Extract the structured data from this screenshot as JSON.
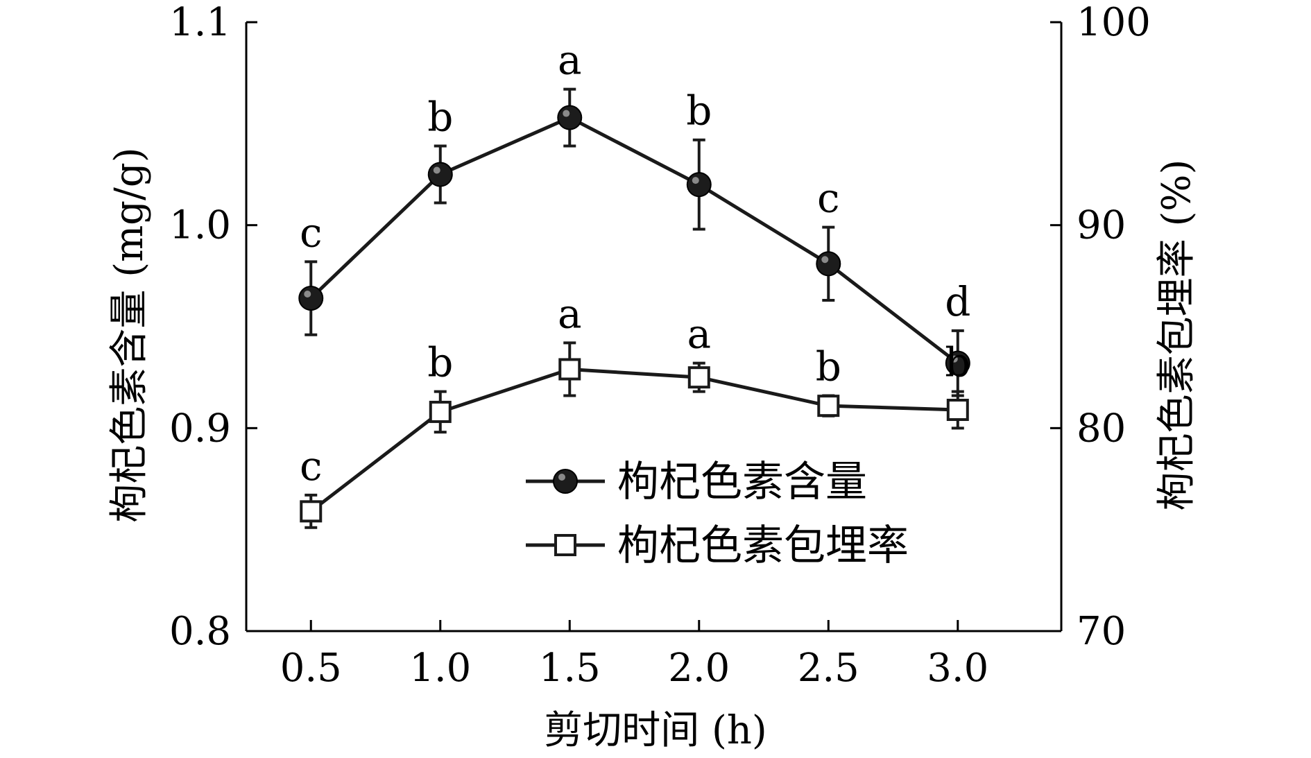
{
  "chart_data": {
    "type": "line",
    "xlabel": "剪切时间 (h)",
    "ylabel_left": "枸杞色素含量 (mg/g)",
    "ylabel_right": "枸杞色素包埋率 (%)",
    "x": [
      0.5,
      1.0,
      1.5,
      2.0,
      2.5,
      3.0
    ],
    "x_tick_labels": [
      "0.5",
      "1.0",
      "1.5",
      "2.0",
      "2.5",
      "3.0"
    ],
    "xlim": [
      0.25,
      3.4
    ],
    "ylim_left": [
      0.8,
      1.1
    ],
    "ylim_right": [
      70,
      100
    ],
    "y_left_ticks": [
      "0.8",
      "0.9",
      "1.0",
      "1.1"
    ],
    "y_right_ticks": [
      "70",
      "80",
      "90",
      "100"
    ],
    "series": [
      {
        "name": "枸杞色素含量",
        "axis": "left",
        "marker": "filled-circle",
        "values": [
          0.964,
          1.025,
          1.053,
          1.02,
          0.981,
          0.932
        ],
        "errors": [
          0.018,
          0.014,
          0.014,
          0.022,
          0.018,
          0.016
        ],
        "letters": [
          "c",
          "b",
          "a",
          "b",
          "c",
          "d"
        ]
      },
      {
        "name": "枸杞色素包埋率",
        "axis": "right",
        "marker": "open-square",
        "values": [
          75.9,
          80.8,
          82.9,
          82.5,
          81.1,
          80.9
        ],
        "errors": [
          0.8,
          1.0,
          1.3,
          0.7,
          0.5,
          0.9
        ],
        "letters": [
          "c",
          "b",
          "a",
          "a",
          "b",
          "b"
        ]
      }
    ],
    "legend": {
      "position": "lower-center",
      "items": [
        "枸杞色素含量",
        "枸杞色素包埋率"
      ]
    }
  }
}
